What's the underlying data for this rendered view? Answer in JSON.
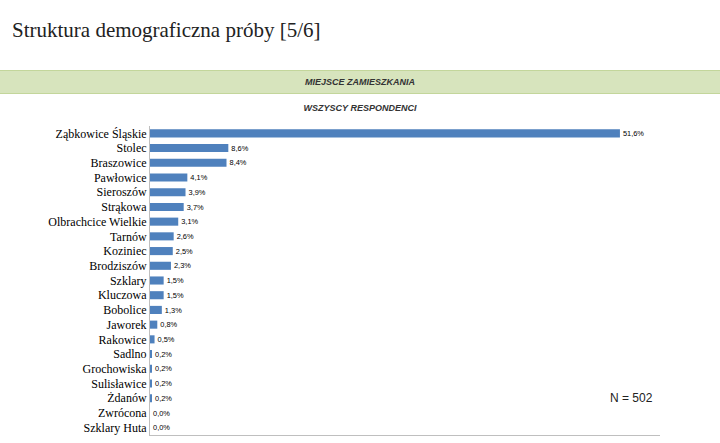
{
  "title": "Struktura demograficzna próby [5/6]",
  "section": "MIEJSCE ZAMIESZKANIA",
  "chart_data": {
    "type": "bar",
    "orientation": "horizontal",
    "subtitle": "WSZYSCY RESPONDENCI",
    "annotation": "N = 502",
    "categories": [
      "Ząbkowice Śląskie",
      "Stolec",
      "Braszowice",
      "Pawłowice",
      "Sieroszów",
      "Strąkowa",
      "Olbrachcice Wielkie",
      "Tarnów",
      "Koziniec",
      "Brodziszów",
      "Szklary",
      "Kluczowa",
      "Bobolice",
      "Jaworek",
      "Rakowice",
      "Sadlno",
      "Grochowiska",
      "Sulisławice",
      "Żdanów",
      "Zwrócona",
      "Szklary Huta"
    ],
    "values": [
      51.6,
      8.6,
      8.4,
      4.1,
      3.9,
      3.7,
      3.1,
      2.6,
      2.5,
      2.3,
      1.5,
      1.5,
      1.3,
      0.8,
      0.5,
      0.2,
      0.2,
      0.2,
      0.2,
      0.0,
      0.0
    ],
    "value_labels": [
      "51,6%",
      "8,6%",
      "8,4%",
      "4,1%",
      "3,9%",
      "3,7%",
      "3,1%",
      "2,6%",
      "2,5%",
      "2,3%",
      "1,5%",
      "1,5%",
      "1,3%",
      "0,8%",
      "0,5%",
      "0,2%",
      "0,2%",
      "0,2%",
      "0,2%",
      "0,0%",
      "0,0%"
    ],
    "color": "#4f81bd",
    "xlim": [
      0,
      56
    ],
    "xticks": [],
    "grid": false,
    "data_labels": true,
    "tick_labels": "y"
  }
}
